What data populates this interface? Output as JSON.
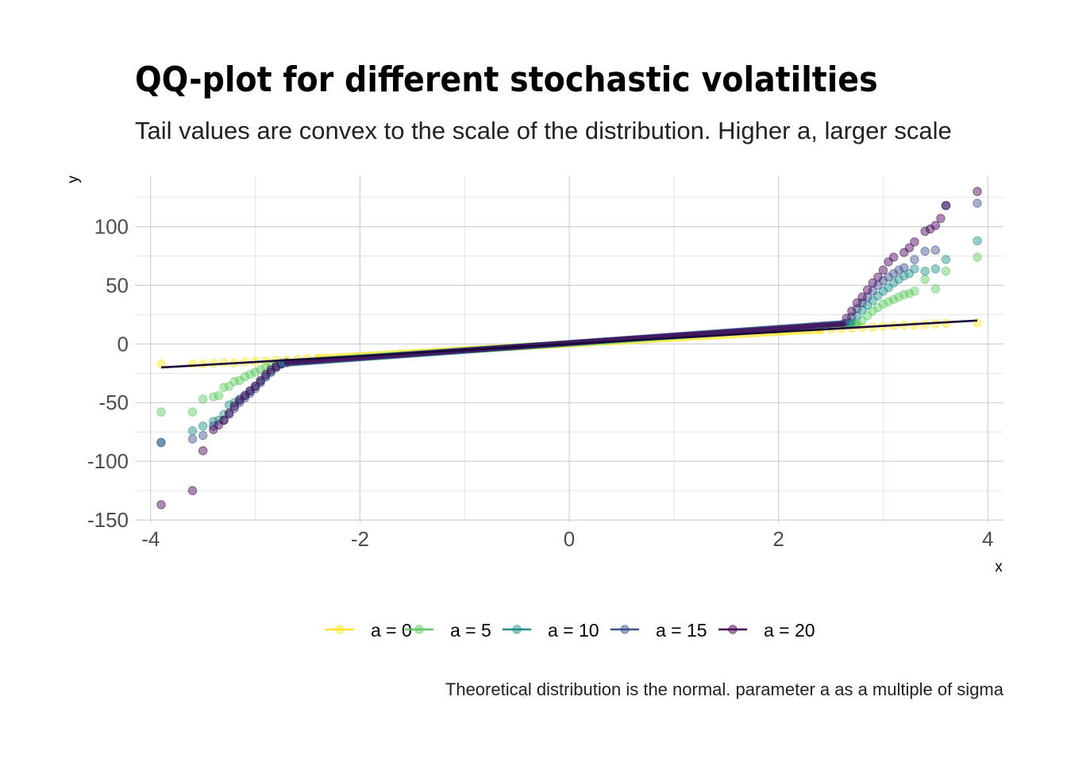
{
  "chart_data": {
    "type": "scatter",
    "title": "QQ-plot for different stochastic volatilties",
    "subtitle": "Tail values are convex to the scale of the distribution. Higher a, larger scale",
    "caption": "Theoretical distribution is the normal. parameter a as a multiple of sigma",
    "xlabel": "x",
    "ylabel": "y",
    "xlim": [
      -4.15,
      4.15
    ],
    "ylim": [
      -152,
      143
    ],
    "x_ticks": [
      -4,
      -2,
      0,
      2,
      4
    ],
    "x_tick_labels": [
      "-4",
      "-2",
      "0",
      "2",
      "4"
    ],
    "y_ticks": [
      -150,
      -100,
      -50,
      0,
      50,
      100
    ],
    "y_tick_labels": [
      "-150",
      "-100",
      "-50",
      "0",
      "50",
      "100"
    ],
    "grid": true,
    "legend_position": "bottom",
    "reference_line": {
      "x": [
        -3.9,
        3.9
      ],
      "y": [
        -20,
        20
      ],
      "color": "#1a0a3a"
    },
    "series": [
      {
        "name": "a = 0",
        "color": "#fde725",
        "points": [
          [
            -3.9,
            -17
          ],
          [
            -3.6,
            -17
          ],
          [
            -3.5,
            -17
          ],
          [
            -3.4,
            -16.5
          ],
          [
            -3.3,
            -16
          ],
          [
            -3.2,
            -16
          ],
          [
            -3.1,
            -15.5
          ],
          [
            -3.0,
            -15
          ],
          [
            -2.9,
            -14.5
          ],
          [
            -2.8,
            -14
          ],
          [
            -2.7,
            -13.5
          ],
          [
            -2.6,
            -13
          ],
          [
            -2.5,
            -12.5
          ],
          [
            -2.4,
            -12
          ],
          [
            2.4,
            12
          ],
          [
            2.5,
            12.5
          ],
          [
            2.6,
            13
          ],
          [
            2.7,
            13.5
          ],
          [
            2.8,
            14
          ],
          [
            2.9,
            14.5
          ],
          [
            3.0,
            15
          ],
          [
            3.1,
            15.5
          ],
          [
            3.2,
            16
          ],
          [
            3.3,
            16
          ],
          [
            3.4,
            16.5
          ],
          [
            3.5,
            17
          ],
          [
            3.6,
            17.5
          ],
          [
            3.9,
            18
          ]
        ]
      },
      {
        "name": "a = 5",
        "color": "#5ec962",
        "points": [
          [
            -3.9,
            -58
          ],
          [
            -3.6,
            -58
          ],
          [
            -3.5,
            -47
          ],
          [
            -3.4,
            -45
          ],
          [
            -3.35,
            -44
          ],
          [
            -3.3,
            -37
          ],
          [
            -3.25,
            -36
          ],
          [
            -3.2,
            -32
          ],
          [
            -3.15,
            -31
          ],
          [
            -3.1,
            -28
          ],
          [
            -3.05,
            -26
          ],
          [
            -3.0,
            -24
          ],
          [
            -2.95,
            -22
          ],
          [
            -2.9,
            -20
          ],
          [
            -2.85,
            -19
          ],
          [
            -2.8,
            -17
          ],
          [
            -2.75,
            -16
          ],
          [
            2.75,
            17
          ],
          [
            2.8,
            20
          ],
          [
            2.85,
            24
          ],
          [
            2.9,
            28
          ],
          [
            2.95,
            31
          ],
          [
            3.0,
            34
          ],
          [
            3.05,
            36
          ],
          [
            3.1,
            38
          ],
          [
            3.15,
            40
          ],
          [
            3.2,
            42
          ],
          [
            3.25,
            43
          ],
          [
            3.3,
            45
          ],
          [
            3.4,
            55
          ],
          [
            3.5,
            47
          ],
          [
            3.6,
            62
          ],
          [
            3.9,
            74
          ]
        ]
      },
      {
        "name": "a = 10",
        "color": "#21918c",
        "points": [
          [
            -3.9,
            -84
          ],
          [
            -3.6,
            -74
          ],
          [
            -3.5,
            -70
          ],
          [
            -3.4,
            -66
          ],
          [
            -3.35,
            -65
          ],
          [
            -3.3,
            -60
          ],
          [
            -3.25,
            -52
          ],
          [
            -3.2,
            -50
          ],
          [
            -3.15,
            -47
          ],
          [
            -3.1,
            -44
          ],
          [
            -3.05,
            -40
          ],
          [
            -3.0,
            -36
          ],
          [
            -2.95,
            -32
          ],
          [
            -2.9,
            -28
          ],
          [
            -2.85,
            -24
          ],
          [
            -2.8,
            -20
          ],
          [
            -2.75,
            -17
          ],
          [
            2.7,
            18
          ],
          [
            2.75,
            24
          ],
          [
            2.8,
            29
          ],
          [
            2.85,
            33
          ],
          [
            2.9,
            37
          ],
          [
            2.95,
            41
          ],
          [
            3.0,
            45
          ],
          [
            3.05,
            48
          ],
          [
            3.1,
            52
          ],
          [
            3.15,
            55
          ],
          [
            3.2,
            58
          ],
          [
            3.25,
            60
          ],
          [
            3.3,
            64
          ],
          [
            3.4,
            62
          ],
          [
            3.5,
            64
          ],
          [
            3.6,
            72
          ],
          [
            3.9,
            88
          ]
        ]
      },
      {
        "name": "a = 15",
        "color": "#3b528b",
        "points": [
          [
            -3.9,
            -84
          ],
          [
            -3.6,
            -81
          ],
          [
            -3.5,
            -78
          ],
          [
            -3.4,
            -70
          ],
          [
            -3.3,
            -65
          ],
          [
            -3.25,
            -60
          ],
          [
            -3.2,
            -55
          ],
          [
            -3.15,
            -50
          ],
          [
            -3.1,
            -46
          ],
          [
            -3.05,
            -42
          ],
          [
            -3.0,
            -38
          ],
          [
            -2.95,
            -33
          ],
          [
            -2.9,
            -28
          ],
          [
            -2.85,
            -24
          ],
          [
            -2.8,
            -20
          ],
          [
            -2.75,
            -17
          ],
          [
            2.65,
            18
          ],
          [
            2.7,
            23
          ],
          [
            2.75,
            30
          ],
          [
            2.8,
            35
          ],
          [
            2.85,
            40
          ],
          [
            2.9,
            45
          ],
          [
            2.95,
            50
          ],
          [
            3.0,
            54
          ],
          [
            3.05,
            57
          ],
          [
            3.1,
            60
          ],
          [
            3.15,
            63
          ],
          [
            3.2,
            65
          ],
          [
            3.3,
            72
          ],
          [
            3.4,
            79
          ],
          [
            3.5,
            80
          ],
          [
            3.6,
            118
          ],
          [
            3.9,
            120
          ]
        ]
      },
      {
        "name": "a = 20",
        "color": "#440154",
        "points": [
          [
            -3.9,
            -137
          ],
          [
            -3.6,
            -125
          ],
          [
            -3.5,
            -91
          ],
          [
            -3.4,
            -73
          ],
          [
            -3.35,
            -69
          ],
          [
            -3.3,
            -65
          ],
          [
            -3.25,
            -59
          ],
          [
            -3.2,
            -53
          ],
          [
            -3.15,
            -48
          ],
          [
            -3.1,
            -44
          ],
          [
            -3.05,
            -40
          ],
          [
            -3.0,
            -36
          ],
          [
            -2.95,
            -31
          ],
          [
            -2.9,
            -26
          ],
          [
            -2.85,
            -22
          ],
          [
            -2.8,
            -19
          ],
          [
            -2.75,
            -17
          ],
          [
            -2.7,
            -16
          ],
          [
            2.62,
            17
          ],
          [
            2.65,
            22
          ],
          [
            2.7,
            28
          ],
          [
            2.75,
            35
          ],
          [
            2.8,
            40
          ],
          [
            2.85,
            46
          ],
          [
            2.9,
            52
          ],
          [
            2.95,
            57
          ],
          [
            3.0,
            63
          ],
          [
            3.05,
            70
          ],
          [
            3.1,
            74
          ],
          [
            3.2,
            78
          ],
          [
            3.25,
            82
          ],
          [
            3.3,
            87
          ],
          [
            3.4,
            96
          ],
          [
            3.45,
            98
          ],
          [
            3.5,
            101
          ],
          [
            3.55,
            107
          ],
          [
            3.6,
            118
          ],
          [
            3.9,
            130
          ]
        ]
      }
    ]
  }
}
